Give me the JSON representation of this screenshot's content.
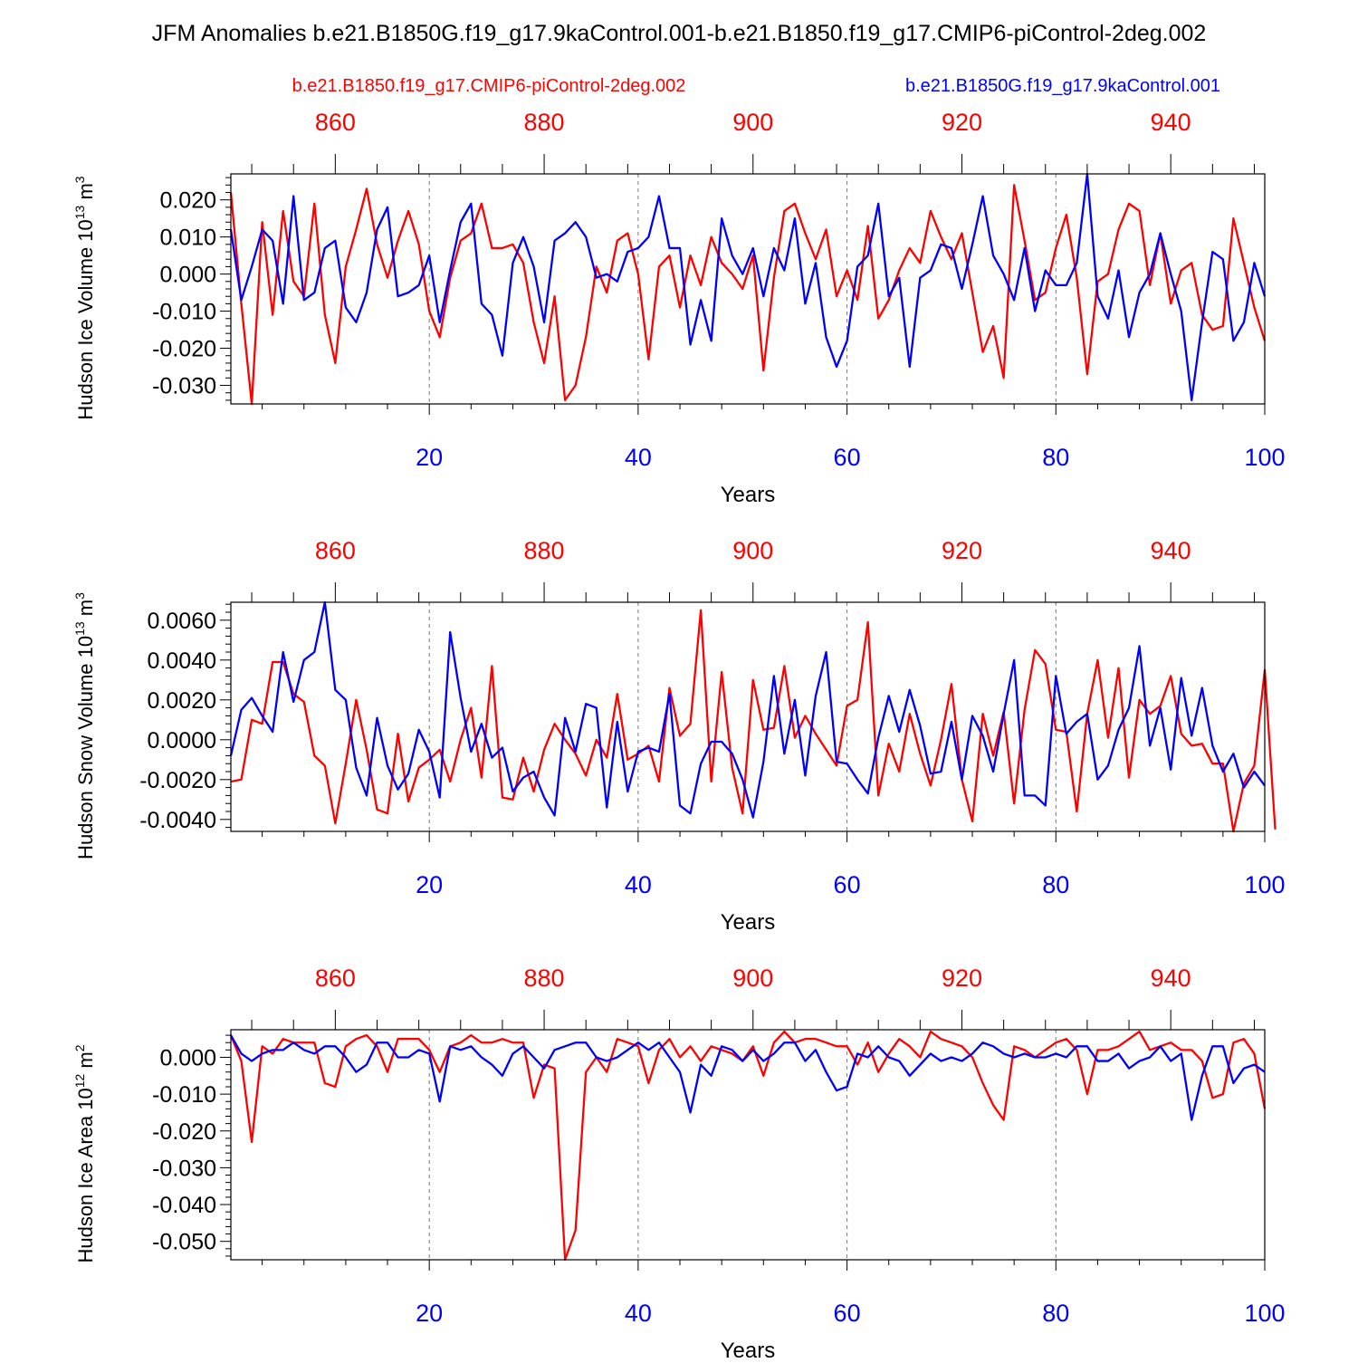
{
  "title": "JFM Anomalies b.e21.B1850G.f19_g17.9kaControl.001-b.e21.B1850.f19_g17.CMIP6-piControl-2deg.002",
  "legend": {
    "red_label": "b.e21.B1850.f19_g17.CMIP6-piControl-2deg.002",
    "blue_label": "b.e21.B1850G.f19_g17.9kaControl.001"
  },
  "colors": {
    "red": "#ff0000",
    "blue": "#0000ff",
    "axis": "#000000",
    "grid": "#777777"
  },
  "chart_data": [
    {
      "type": "line",
      "ylabel_main": "Hudson Ice Volume 10",
      "ylabel_exp": "13",
      "ylabel_unit": " m",
      "ylabel_unit_exp": "3",
      "xlabel": "Years",
      "xlim": [
        1,
        100
      ],
      "top_xlim": [
        850,
        949
      ],
      "ylim": [
        -0.035,
        0.027
      ],
      "yticks": [
        -0.03,
        -0.02,
        -0.01,
        0.0,
        0.01,
        0.02
      ],
      "ytick_labels": [
        "-0.030",
        "-0.020",
        "-0.010",
        "0.000",
        "0.010",
        "0.020"
      ],
      "yminor_step": 0.002,
      "xticks": [
        20,
        40,
        60,
        80,
        100
      ],
      "xtick_labels": [
        "20",
        "40",
        "60",
        "80",
        "100"
      ],
      "top_ticks": [
        860,
        880,
        900,
        920,
        940
      ],
      "top_tick_labels": [
        "860",
        "880",
        "900",
        "920",
        "940"
      ],
      "series": [
        {
          "name": "b.e21.B1850.f19_g17.CMIP6-piControl-2deg.002",
          "color": "red",
          "values": [
            0.022,
            -0.008,
            -0.035,
            0.014,
            -0.011,
            0.017,
            -0.002,
            -0.006,
            0.019,
            -0.011,
            -0.024,
            0.002,
            0.012,
            0.023,
            0.008,
            -0.001,
            0.009,
            0.017,
            0.008,
            -0.01,
            -0.017,
            -0.001,
            0.009,
            0.011,
            0.019,
            0.007,
            0.007,
            0.008,
            0.003,
            -0.013,
            -0.024,
            -0.006,
            -0.034,
            -0.03,
            -0.017,
            0.002,
            -0.005,
            0.009,
            0.011,
            0.0,
            -0.023,
            0.002,
            0.005,
            -0.009,
            0.005,
            -0.003,
            0.01,
            0.003,
            0.0,
            -0.004,
            0.005,
            -0.026,
            -0.001,
            0.017,
            0.019,
            0.011,
            0.004,
            0.012,
            -0.006,
            0.001,
            -0.007,
            0.013,
            -0.012,
            -0.007,
            0.001,
            0.007,
            0.003,
            0.017,
            0.01,
            0.004,
            0.011,
            -0.005,
            -0.021,
            -0.014,
            -0.028,
            0.024,
            0.009,
            -0.007,
            -0.005,
            0.007,
            0.016,
            -0.001,
            -0.027,
            -0.002,
            0.0,
            0.012,
            0.019,
            0.017,
            -0.003,
            0.011,
            -0.008,
            0.001,
            0.003,
            -0.011,
            -0.015,
            -0.014,
            0.015,
            0.003,
            -0.009,
            -0.018
          ]
        },
        {
          "name": "b.e21.B1850G.f19_g17.9kaControl.001",
          "color": "blue",
          "values": [
            0.012,
            -0.007,
            0.002,
            0.012,
            0.009,
            -0.008,
            0.021,
            -0.007,
            -0.005,
            0.007,
            0.009,
            -0.009,
            -0.013,
            -0.005,
            0.012,
            0.018,
            -0.006,
            -0.005,
            -0.003,
            0.005,
            -0.013,
            0.001,
            0.014,
            0.019,
            -0.008,
            -0.011,
            -0.022,
            0.003,
            0.01,
            0.002,
            -0.013,
            0.009,
            0.011,
            0.014,
            0.01,
            -0.001,
            0.0,
            -0.002,
            0.006,
            0.007,
            0.01,
            0.021,
            0.007,
            0.007,
            -0.019,
            -0.007,
            -0.018,
            0.015,
            0.005,
            0.0,
            0.007,
            -0.006,
            0.007,
            0.001,
            0.015,
            -0.008,
            0.003,
            -0.017,
            -0.025,
            -0.018,
            0.002,
            0.005,
            0.019,
            -0.006,
            -0.001,
            -0.025,
            -0.001,
            0.001,
            0.008,
            0.007,
            -0.004,
            0.008,
            0.021,
            0.005,
            0.0,
            -0.007,
            0.007,
            -0.01,
            0.001,
            -0.003,
            -0.003,
            0.003,
            0.027,
            -0.006,
            -0.012,
            0.001,
            -0.017,
            -0.005,
            0.0,
            0.011,
            0.0,
            -0.01,
            -0.034,
            -0.013,
            0.006,
            0.004,
            -0.018,
            -0.013,
            0.003,
            -0.006
          ]
        }
      ]
    },
    {
      "type": "line",
      "ylabel_main": "Hudson Snow Volume 10",
      "ylabel_exp": "13",
      "ylabel_unit": " m",
      "ylabel_unit_exp": "3",
      "xlabel": "Years",
      "xlim": [
        1,
        100
      ],
      "top_xlim": [
        850,
        949
      ],
      "ylim": [
        -0.0046,
        0.0069
      ],
      "yticks": [
        -0.004,
        -0.002,
        0.0,
        0.002,
        0.004,
        0.006
      ],
      "ytick_labels": [
        "-0.0040",
        "-0.0020",
        "0.0000",
        "0.0020",
        "0.0040",
        "0.0060"
      ],
      "yminor_step": 0.0004,
      "xticks": [
        20,
        40,
        60,
        80,
        100
      ],
      "xtick_labels": [
        "20",
        "40",
        "60",
        "80",
        "100"
      ],
      "top_ticks": [
        860,
        880,
        900,
        920,
        940
      ],
      "top_tick_labels": [
        "860",
        "880",
        "900",
        "920",
        "940"
      ],
      "series": [
        {
          "name": "b.e21.B1850.f19_g17.CMIP6-piControl-2deg.002",
          "color": "red",
          "values": [
            -0.0021,
            -0.002,
            0.001,
            0.0008,
            0.0039,
            0.0039,
            0.0023,
            0.0019,
            -0.0008,
            -0.0013,
            -0.0042,
            -0.0012,
            0.002,
            -0.0005,
            -0.0035,
            -0.0037,
            0.0003,
            -0.0031,
            -0.0014,
            -0.001,
            -0.0005,
            -0.0021,
            0.0,
            0.0016,
            -0.0019,
            0.0037,
            -0.0029,
            -0.003,
            -0.0009,
            -0.0026,
            -0.0005,
            0.0008,
            0.0,
            -0.0007,
            -0.0018,
            0.0,
            -0.0009,
            0.0023,
            -0.001,
            -0.0007,
            -0.0003,
            -0.0021,
            0.0026,
            0.0002,
            0.0008,
            0.0065,
            -0.0021,
            0.0034,
            -0.0014,
            -0.0037,
            0.003,
            0.0005,
            0.0006,
            0.0037,
            0.0001,
            0.0012,
            0.0003,
            -0.0005,
            -0.0013,
            0.0017,
            0.002,
            0.0059,
            -0.0028,
            -0.0002,
            -0.0016,
            0.0013,
            -0.0007,
            -0.0023,
            0.0,
            0.0028,
            -0.002,
            -0.0041,
            0.0013,
            -0.0008,
            0.0014,
            -0.0032,
            0.0015,
            0.0045,
            0.0038,
            0.0005,
            0.0004,
            -0.0036,
            0.0013,
            0.004,
            0.0001,
            0.0036,
            -0.0019,
            0.002,
            0.0013,
            0.0017,
            0.0032,
            0.0003,
            -0.0003,
            -0.0002,
            -0.0012,
            -0.0012,
            -0.0046,
            -0.0022,
            -0.0013,
            0.0035,
            -0.0045
          ]
        },
        {
          "name": "b.e21.B1850G.f19_g17.9kaControl.001",
          "color": "blue",
          "values": [
            -0.0008,
            0.0015,
            0.0021,
            0.0012,
            0.0004,
            0.0044,
            0.0019,
            0.004,
            0.0044,
            0.0069,
            0.0025,
            0.002,
            -0.0014,
            -0.0028,
            0.0011,
            -0.0013,
            -0.0025,
            -0.0017,
            0.0005,
            -0.0006,
            -0.0029,
            0.0054,
            0.0021,
            -0.0006,
            0.0008,
            -0.0009,
            -0.0004,
            -0.0026,
            -0.0019,
            -0.0016,
            -0.0029,
            -0.0038,
            0.0011,
            -0.0006,
            0.0018,
            0.0016,
            -0.0034,
            0.0009,
            -0.0026,
            -0.0006,
            -0.0004,
            -0.0006,
            0.0023,
            -0.0033,
            -0.0037,
            -0.0012,
            -0.0001,
            -0.0001,
            -0.0007,
            -0.002,
            -0.0039,
            -0.0011,
            0.0032,
            -0.0007,
            0.002,
            -0.0018,
            0.0022,
            0.0044,
            -0.0011,
            -0.0012,
            -0.002,
            -0.0027,
            0.0001,
            0.0022,
            0.0004,
            0.0025,
            0.0007,
            -0.0017,
            -0.0016,
            0.0009,
            -0.002,
            0.0012,
            0.0002,
            -0.0016,
            0.0013,
            0.004,
            -0.0028,
            -0.0028,
            -0.0033,
            0.0032,
            0.0003,
            0.0009,
            0.0013,
            -0.002,
            -0.0013,
            0.0005,
            0.0016,
            0.0047,
            -0.0003,
            0.0016,
            -0.0015,
            0.0031,
            0.0002,
            0.0026,
            -0.0003,
            -0.0016,
            -0.0007,
            -0.0024,
            -0.0016,
            -0.0023
          ]
        }
      ]
    },
    {
      "type": "line",
      "ylabel_main": "Hudson Ice Area 10",
      "ylabel_exp": "12",
      "ylabel_unit": " m",
      "ylabel_unit_exp": "2",
      "xlabel": "Years",
      "xlim": [
        1,
        100
      ],
      "top_xlim": [
        850,
        949
      ],
      "ylim": [
        -0.055,
        0.0075
      ],
      "yticks": [
        -0.05,
        -0.04,
        -0.03,
        -0.02,
        -0.01,
        0.0
      ],
      "ytick_labels": [
        "-0.050",
        "-0.040",
        "-0.030",
        "-0.020",
        "-0.010",
        "0.000"
      ],
      "yminor_step": 0.002,
      "xticks": [
        20,
        40,
        60,
        80,
        100
      ],
      "xtick_labels": [
        "20",
        "40",
        "60",
        "80",
        "100"
      ],
      "top_ticks": [
        860,
        880,
        900,
        920,
        940
      ],
      "top_tick_labels": [
        "860",
        "880",
        "900",
        "920",
        "940"
      ],
      "series": [
        {
          "name": "b.e21.B1850.f19_g17.CMIP6-piControl-2deg.002",
          "color": "red",
          "values": [
            0.006,
            -0.001,
            -0.023,
            0.003,
            0.001,
            0.005,
            0.004,
            0.004,
            0.004,
            -0.007,
            -0.008,
            0.003,
            0.005,
            0.006,
            0.003,
            -0.004,
            0.005,
            0.005,
            0.005,
            0.002,
            -0.004,
            0.003,
            0.004,
            0.006,
            0.004,
            0.004,
            0.005,
            0.004,
            0.004,
            -0.011,
            -0.002,
            -0.003,
            -0.055,
            -0.047,
            -0.004,
            0.0,
            -0.004,
            0.005,
            0.004,
            0.003,
            -0.007,
            0.002,
            0.005,
            0.0,
            0.003,
            -0.001,
            0.003,
            0.002,
            0.001,
            -0.001,
            0.003,
            -0.005,
            0.004,
            0.007,
            0.004,
            0.005,
            0.005,
            0.004,
            0.003,
            0.003,
            -0.002,
            0.004,
            -0.004,
            0.001,
            0.005,
            0.003,
            0.0,
            0.007,
            0.005,
            0.004,
            0.003,
            0.0,
            -0.007,
            -0.013,
            -0.017,
            0.003,
            0.002,
            0.0,
            0.002,
            0.004,
            0.005,
            0.002,
            -0.01,
            0.002,
            0.002,
            0.003,
            0.005,
            0.007,
            0.002,
            0.003,
            0.004,
            0.002,
            0.002,
            -0.001,
            -0.011,
            -0.01,
            0.004,
            0.005,
            0.001,
            -0.014
          ]
        },
        {
          "name": "b.e21.B1850G.f19_g17.9kaControl.001",
          "color": "blue",
          "values": [
            0.006,
            0.001,
            -0.001,
            0.001,
            0.002,
            0.002,
            0.004,
            0.002,
            0.001,
            0.003,
            0.003,
            0.0,
            -0.004,
            -0.002,
            0.004,
            0.004,
            0.0,
            0.0,
            0.002,
            0.001,
            -0.012,
            0.003,
            0.002,
            0.003,
            0.0,
            -0.002,
            -0.005,
            0.001,
            0.003,
            0.0,
            -0.003,
            0.002,
            0.003,
            0.004,
            0.004,
            0.0,
            -0.001,
            0.0,
            0.002,
            0.004,
            0.002,
            0.004,
            0.0,
            -0.004,
            -0.015,
            -0.002,
            -0.005,
            0.003,
            0.002,
            -0.001,
            0.002,
            -0.001,
            0.001,
            0.004,
            0.004,
            -0.001,
            0.002,
            -0.004,
            -0.009,
            -0.008,
            0.001,
            0.0,
            0.003,
            0.0,
            -0.001,
            -0.005,
            -0.002,
            0.001,
            -0.001,
            0.0,
            -0.001,
            0.001,
            0.004,
            0.003,
            0.001,
            0.0,
            0.001,
            0.0,
            0.0,
            0.001,
            0.0,
            0.003,
            0.003,
            -0.001,
            -0.001,
            0.001,
            -0.003,
            -0.001,
            0.0,
            0.003,
            -0.001,
            0.001,
            -0.017,
            -0.005,
            0.003,
            0.003,
            -0.007,
            -0.003,
            -0.002,
            -0.004
          ]
        }
      ]
    }
  ]
}
